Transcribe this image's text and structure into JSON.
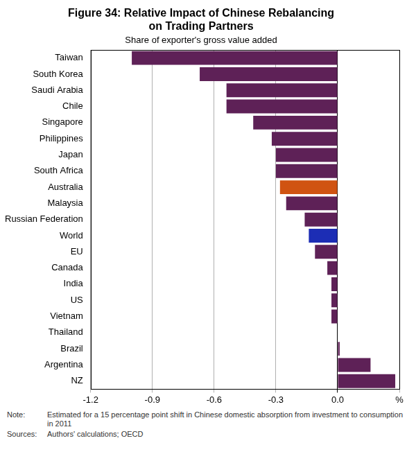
{
  "chart_data": {
    "type": "bar",
    "orientation": "horizontal",
    "title": [
      "Figure 34: Relative Impact of Chinese Rebalancing",
      "on Trading Partners"
    ],
    "subtitle": "Share of exporter's gross value added",
    "categories": [
      "Taiwan",
      "South Korea",
      "Saudi Arabia",
      "Chile",
      "Singapore",
      "Philippines",
      "Japan",
      "South Africa",
      "Australia",
      "Malaysia",
      "Russian Federation",
      "World",
      "EU",
      "Canada",
      "India",
      "US",
      "Vietnam",
      "Thailand",
      "Brazil",
      "Argentina",
      "NZ"
    ],
    "values": [
      -1.0,
      -0.67,
      -0.54,
      -0.54,
      -0.41,
      -0.32,
      -0.3,
      -0.3,
      -0.28,
      -0.25,
      -0.16,
      -0.14,
      -0.11,
      -0.05,
      -0.03,
      -0.03,
      -0.03,
      0,
      0.01,
      0.16,
      0.28
    ],
    "colors": [
      "#5e2157",
      "#5e2157",
      "#5e2157",
      "#5e2157",
      "#5e2157",
      "#5e2157",
      "#5e2157",
      "#5e2157",
      "#d05312",
      "#5e2157",
      "#5e2157",
      "#1c2db5",
      "#5e2157",
      "#5e2157",
      "#5e2157",
      "#5e2157",
      "#5e2157",
      "#5e2157",
      "#5e2157",
      "#5e2157",
      "#5e2157"
    ],
    "xlim": [
      -1.2,
      0.3
    ],
    "xticks": [
      -1.2,
      -0.9,
      -0.6,
      -0.3,
      {
        "value": 0,
        "label": "0.0"
      },
      {
        "value": 0.3,
        "label": "%"
      }
    ],
    "grid": true,
    "notes": [
      {
        "label": "Note:",
        "text": "Estimated for a 15 percentage point shift in Chinese domestic absorption from investment to consumption in 2011"
      },
      {
        "label": "Sources:",
        "text": "Authors' calculations; OECD"
      }
    ]
  }
}
